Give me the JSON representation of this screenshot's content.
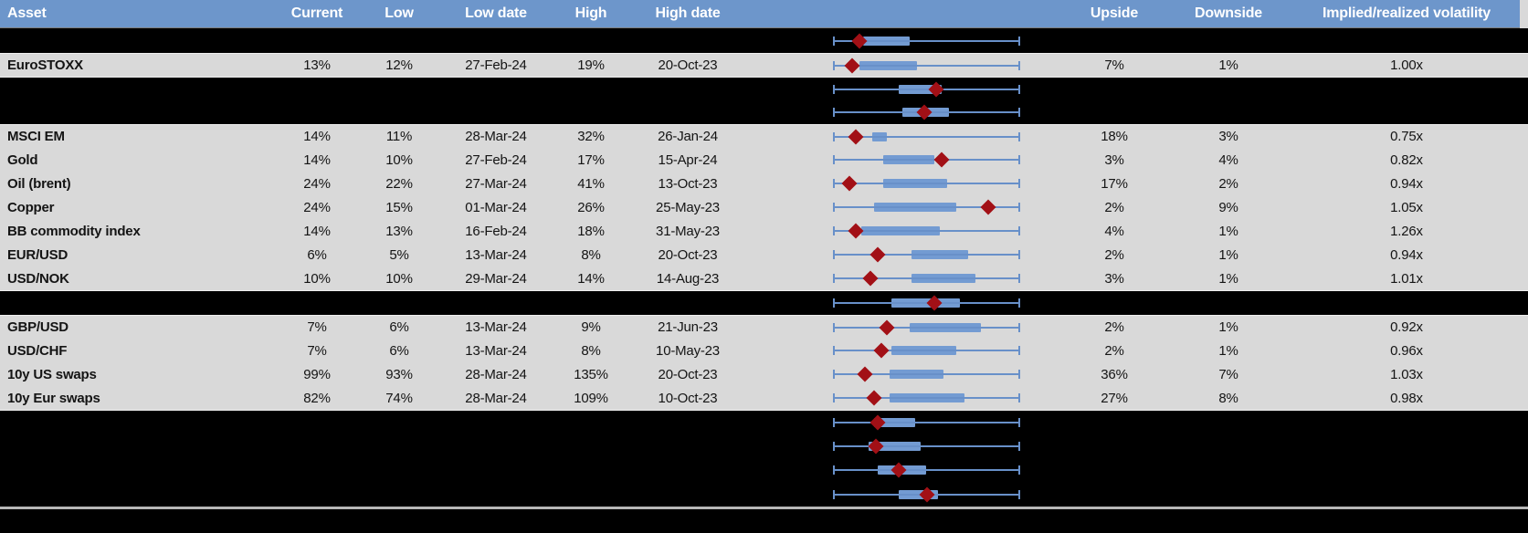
{
  "header": {
    "columns": [
      {
        "label": "Asset"
      },
      {
        "label": "Current"
      },
      {
        "label": "Low"
      },
      {
        "label": "Low date"
      },
      {
        "label": "High"
      },
      {
        "label": "High date"
      },
      {
        "label": "Upside"
      },
      {
        "label": "Downside"
      },
      {
        "label": "Implied/realized volatility"
      }
    ]
  },
  "colors": {
    "header_blue": "#6d96cb",
    "row_gray": "#d9d9d9",
    "redacted_black": "#000000",
    "box_blue": "#739bd2",
    "whisker_blue": "#6890c9",
    "marker_red": "#a21016"
  },
  "chart_data": {
    "type": "boxplot-range",
    "note": "per-row horizontal whisker from min to max of normalized range; box = interquartile band; diamond = current level; positions are fractions 0-1 of full whisker span",
    "legend_position": "none",
    "grid": false
  },
  "rows": [
    {
      "chart": {
        "box": [
          0.16,
          0.41
        ],
        "marker": 0.14
      }
    },
    {
      "asset": "EuroSTOXX",
      "current": "13%",
      "low": "12%",
      "low_date": "27-Feb-24",
      "high": "19%",
      "high_date": "20-Oct-23",
      "upside": "7%",
      "downside": "1%",
      "implied_realized": "1.00x",
      "chart": {
        "box": [
          0.14,
          0.45
        ],
        "marker": 0.1
      }
    },
    {
      "chart": {
        "box": [
          0.35,
          0.58
        ],
        "marker": 0.55
      }
    },
    {
      "chart": {
        "box": [
          0.37,
          0.62
        ],
        "marker": 0.49
      }
    },
    {
      "asset": "MSCI EM",
      "current": "14%",
      "low": "11%",
      "low_date": "28-Mar-24",
      "high": "32%",
      "high_date": "26-Jan-24",
      "upside": "18%",
      "downside": "3%",
      "implied_realized": "0.75x",
      "chart": {
        "box": [
          0.21,
          0.29
        ],
        "marker": 0.12
      }
    },
    {
      "asset": "Gold",
      "current": "14%",
      "low": "10%",
      "low_date": "27-Feb-24",
      "high": "17%",
      "high_date": "15-Apr-24",
      "upside": "3%",
      "downside": "4%",
      "implied_realized": "0.82x",
      "chart": {
        "box": [
          0.27,
          0.54
        ],
        "marker": 0.58
      }
    },
    {
      "asset": "Oil (brent)",
      "current": "24%",
      "low": "22%",
      "low_date": "27-Mar-24",
      "high": "41%",
      "high_date": "13-Oct-23",
      "upside": "17%",
      "downside": "2%",
      "implied_realized": "0.94x",
      "chart": {
        "box": [
          0.27,
          0.61
        ],
        "marker": 0.09
      }
    },
    {
      "asset": "Copper",
      "current": "24%",
      "low": "15%",
      "low_date": "01-Mar-24",
      "high": "26%",
      "high_date": "25-May-23",
      "upside": "2%",
      "downside": "9%",
      "implied_realized": "1.05x",
      "chart": {
        "box": [
          0.22,
          0.66
        ],
        "marker": 0.83
      }
    },
    {
      "asset": "BB commodity index",
      "current": "14%",
      "low": "13%",
      "low_date": "16-Feb-24",
      "high": "18%",
      "high_date": "31-May-23",
      "upside": "4%",
      "downside": "1%",
      "implied_realized": "1.26x",
      "chart": {
        "box": [
          0.15,
          0.57
        ],
        "marker": 0.12
      }
    },
    {
      "asset": "EUR/USD",
      "current": "6%",
      "low": "5%",
      "low_date": "13-Mar-24",
      "high": "8%",
      "high_date": "20-Oct-23",
      "upside": "2%",
      "downside": "1%",
      "implied_realized": "0.94x",
      "chart": {
        "box": [
          0.42,
          0.72
        ],
        "marker": 0.24
      }
    },
    {
      "asset": "USD/NOK",
      "current": "10%",
      "low": "10%",
      "low_date": "29-Mar-24",
      "high": "14%",
      "high_date": "14-Aug-23",
      "upside": "3%",
      "downside": "1%",
      "implied_realized": "1.01x",
      "chart": {
        "box": [
          0.42,
          0.76
        ],
        "marker": 0.2
      }
    },
    {
      "chart": {
        "box": [
          0.31,
          0.68
        ],
        "marker": 0.54
      }
    },
    {
      "asset": "GBP/USD",
      "current": "7%",
      "low": "6%",
      "low_date": "13-Mar-24",
      "high": "9%",
      "high_date": "21-Jun-23",
      "upside": "2%",
      "downside": "1%",
      "implied_realized": "0.92x",
      "chart": {
        "box": [
          0.41,
          0.79
        ],
        "marker": 0.29
      }
    },
    {
      "asset": "USD/CHF",
      "current": "7%",
      "low": "6%",
      "low_date": "13-Mar-24",
      "high": "8%",
      "high_date": "10-May-23",
      "upside": "2%",
      "downside": "1%",
      "implied_realized": "0.96x",
      "chart": {
        "box": [
          0.31,
          0.66
        ],
        "marker": 0.26
      }
    },
    {
      "asset": "10y US swaps",
      "current": "99%",
      "low": "93%",
      "low_date": "28-Mar-24",
      "high": "135%",
      "high_date": "20-Oct-23",
      "upside": "36%",
      "downside": "7%",
      "implied_realized": "1.03x",
      "chart": {
        "box": [
          0.3,
          0.59
        ],
        "marker": 0.17
      }
    },
    {
      "asset": "10y Eur swaps",
      "current": "82%",
      "low": "74%",
      "low_date": "28-Mar-24",
      "high": "109%",
      "high_date": "10-Oct-23",
      "upside": "27%",
      "downside": "8%",
      "implied_realized": "0.98x",
      "chart": {
        "box": [
          0.3,
          0.7
        ],
        "marker": 0.22
      }
    },
    {
      "chart": {
        "box": [
          0.22,
          0.44
        ],
        "marker": 0.24
      }
    },
    {
      "chart": {
        "box": [
          0.19,
          0.47
        ],
        "marker": 0.23
      }
    },
    {
      "chart": {
        "box": [
          0.24,
          0.5
        ],
        "marker": 0.35
      }
    },
    {
      "chart": {
        "box": [
          0.35,
          0.56
        ],
        "marker": 0.5
      }
    }
  ]
}
